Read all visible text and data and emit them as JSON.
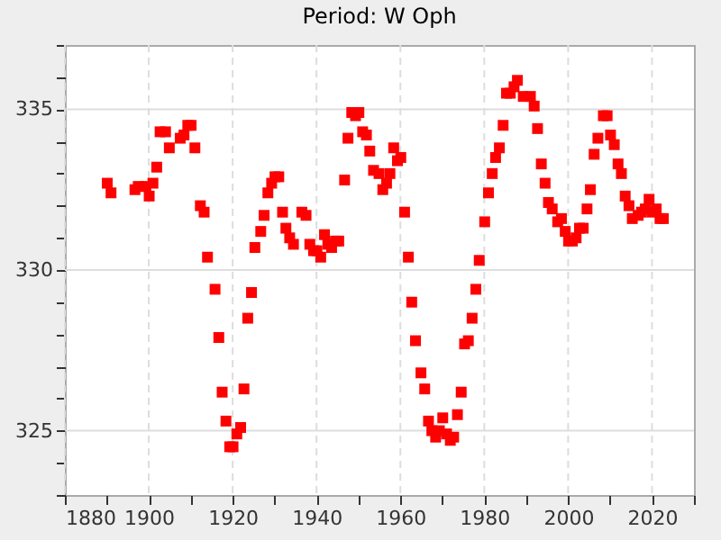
{
  "chart_data": {
    "type": "scatter",
    "title": "Period: W Oph",
    "x": [
      1890.1,
      1891,
      1896.7,
      1897.5,
      1899.3,
      1900.1,
      1901,
      1901.9,
      1902.7,
      1904,
      1904.9,
      1907.5,
      1908.4,
      1909.3,
      1910.1,
      1911,
      1912.3,
      1913.2,
      1914,
      1915.8,
      1916.7,
      1917.5,
      1918.4,
      1919.3,
      1920.1,
      1921,
      1921.9,
      1922.7,
      1923.6,
      1924.5,
      1925.3,
      1926.7,
      1927.5,
      1928.4,
      1929.3,
      1930.1,
      1931,
      1931.9,
      1932.7,
      1933.6,
      1934.5,
      1936.5,
      1937.5,
      1938.4,
      1939.3,
      1940.1,
      1941,
      1941.9,
      1942.7,
      1943.6,
      1944.5,
      1945.3,
      1946.7,
      1947.5,
      1948.4,
      1949.3,
      1950.1,
      1951,
      1951.9,
      1952.7,
      1953.6,
      1954.9,
      1955.8,
      1956.7,
      1957.5,
      1958.4,
      1959.3,
      1960.1,
      1961,
      1961.9,
      1962.7,
      1963.6,
      1964.9,
      1965.8,
      1966.7,
      1967.5,
      1968.4,
      1969.3,
      1970.1,
      1971,
      1971.9,
      1972.7,
      1973.6,
      1974.5,
      1975.3,
      1976.2,
      1977.1,
      1978,
      1978.8,
      1980.1,
      1981,
      1981.9,
      1982.7,
      1983.6,
      1984.5,
      1985.3,
      1986.2,
      1987.1,
      1987.9,
      1989.3,
      1991,
      1991.9,
      1992.7,
      1993.6,
      1994.5,
      1995.3,
      1996.2,
      1997.5,
      1998.4,
      1999.3,
      2000.1,
      2001,
      2001.9,
      2002.7,
      2003.6,
      2004.5,
      2005.3,
      2006.2,
      2007.1,
      2008.4,
      2009.3,
      2010.1,
      2011,
      2011.9,
      2012.7,
      2013.6,
      2014.5,
      2015.3,
      2016.7,
      2017.5,
      2018.4,
      2019.3,
      2020.1,
      2021,
      2021.9,
      2022.7
    ],
    "series": [
      {
        "color": "#ff0000",
        "values": [
          332.7,
          332.4,
          332.5,
          332.6,
          332.6,
          332.3,
          332.7,
          333.2,
          334.3,
          334.3,
          333.8,
          334.1,
          334.2,
          334.5,
          334.5,
          333.8,
          332.0,
          331.8,
          330.4,
          329.4,
          327.9,
          326.2,
          325.3,
          324.5,
          324.5,
          324.9,
          325.1,
          326.3,
          328.5,
          329.3,
          330.7,
          331.2,
          331.7,
          332.4,
          332.7,
          332.9,
          332.9,
          331.8,
          331.3,
          331.0,
          330.8,
          331.8,
          331.7,
          330.8,
          330.6,
          330.6,
          330.4,
          331.1,
          330.8,
          330.7,
          330.9,
          330.9,
          332.8,
          334.1,
          334.9,
          334.8,
          334.9,
          334.3,
          334.2,
          333.7,
          333.1,
          333.0,
          332.5,
          332.7,
          333.0,
          333.8,
          333.4,
          333.5,
          331.8,
          330.4,
          329.0,
          327.8,
          326.8,
          326.3,
          325.3,
          325.0,
          324.8,
          325.0,
          325.4,
          324.9,
          324.7,
          324.8,
          325.5,
          326.2,
          327.7,
          327.8,
          328.5,
          329.4,
          330.3,
          331.5,
          332.4,
          333.0,
          333.5,
          333.8,
          334.5,
          335.5,
          335.5,
          335.7,
          335.9,
          335.4,
          335.4,
          335.1,
          334.4,
          333.3,
          332.7,
          332.1,
          331.9,
          331.5,
          331.6,
          331.2,
          330.9,
          330.9,
          331.0,
          331.3,
          331.3,
          331.9,
          332.5,
          333.6,
          334.1,
          334.8,
          334.8,
          334.2,
          333.9,
          333.3,
          333.0,
          332.3,
          332.0,
          331.6,
          331.7,
          331.8,
          331.9,
          332.2,
          331.8,
          331.9,
          331.6,
          331.6
        ]
      }
    ],
    "marker": "square",
    "xlim": [
      1880,
      2030
    ],
    "xticks": [
      1880,
      {
        "value": 1890,
        "label": null
      },
      1900,
      {
        "value": 1910,
        "label": null
      },
      1920,
      {
        "value": 1930,
        "label": null
      },
      1940,
      {
        "value": 1950,
        "label": null
      },
      1960,
      {
        "value": 1970,
        "label": null
      },
      1980,
      {
        "value": 1990,
        "label": null
      },
      2000,
      {
        "value": 2010,
        "label": null
      },
      2020,
      {
        "value": 2030,
        "label": null
      }
    ],
    "ylim": [
      323,
      337
    ],
    "yticks": [
      {
        "value": 323,
        "label": null
      },
      {
        "value": 324,
        "label": null
      },
      325,
      {
        "value": 326,
        "label": null
      },
      {
        "value": 327,
        "label": null
      },
      {
        "value": 328,
        "label": null
      },
      {
        "value": 329,
        "label": null
      },
      330,
      {
        "value": 331,
        "label": null
      },
      {
        "value": 332,
        "label": null
      },
      {
        "value": 333,
        "label": null
      },
      {
        "value": 334,
        "label": null
      },
      335,
      {
        "value": 336,
        "label": null
      },
      {
        "value": 337,
        "label": null
      }
    ],
    "grid": true
  }
}
